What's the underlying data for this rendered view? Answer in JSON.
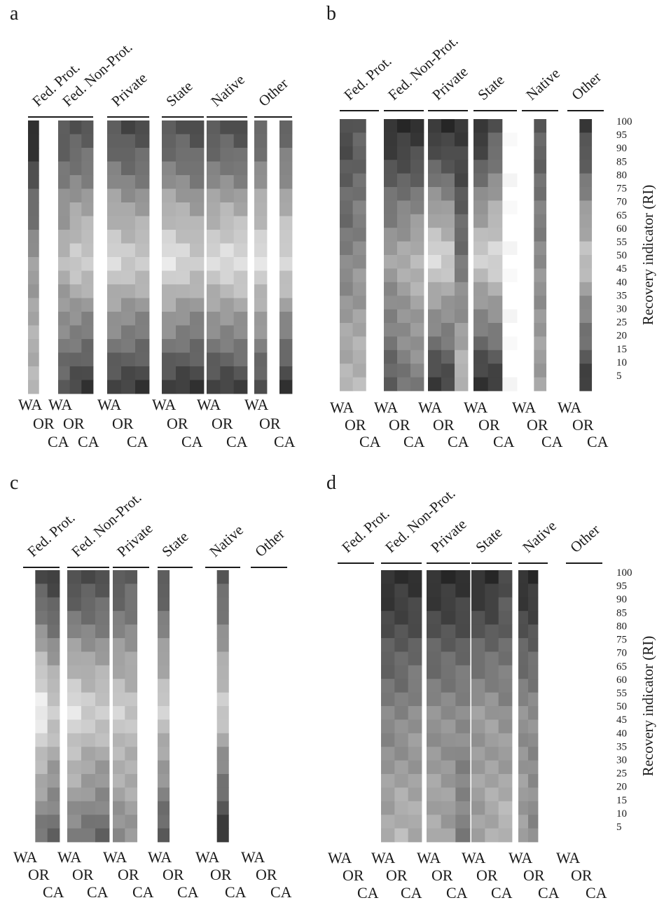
{
  "chart_data": [
    {
      "type": "heatmap",
      "panel": "a",
      "groups": [
        "Fed. Prot.",
        "Fed. Non-Prot.",
        "Private",
        "State",
        "Native",
        "Other"
      ],
      "states": [
        "WA",
        "OR",
        "CA"
      ],
      "y_ticks": [],
      "ylabel": "",
      "note": "Cell shading is greyscale intensity (0 = white, 1 = black); rows ordered top (RI 100) to bottom (RI 5).",
      "present": [
        [
          1,
          0,
          0
        ],
        [
          1,
          1,
          1
        ],
        [
          1,
          1,
          1
        ],
        [
          1,
          1,
          1
        ],
        [
          1,
          1,
          1
        ],
        [
          1,
          0,
          1
        ]
      ],
      "top": [
        [
          0.95,
          0,
          0
        ],
        [
          0.75,
          0.75,
          0.75
        ],
        [
          0.75,
          0.8,
          0.8
        ],
        [
          0.75,
          0.75,
          0.8
        ],
        [
          0.75,
          0.75,
          0.8
        ],
        [
          0.7,
          0,
          0.7
        ]
      ],
      "mid": [
        [
          0.45,
          0,
          0
        ],
        [
          0.3,
          0.2,
          0.2
        ],
        [
          0.15,
          0.2,
          0.2
        ],
        [
          0.1,
          0.15,
          0.2
        ],
        [
          0.15,
          0.12,
          0.12
        ],
        [
          0.12,
          0,
          0.15
        ]
      ],
      "bottom": [
        [
          0.3,
          0,
          0
        ],
        [
          0.7,
          0.8,
          0.85
        ],
        [
          0.8,
          0.82,
          0.85
        ],
        [
          0.82,
          0.85,
          0.85
        ],
        [
          0.8,
          0.82,
          0.8
        ],
        [
          0.75,
          0,
          0.85
        ]
      ]
    },
    {
      "type": "heatmap",
      "panel": "b",
      "groups": [
        "Fed. Prot.",
        "Fed. Non-Prot.",
        "Private",
        "State",
        "Native",
        "Other"
      ],
      "states": [
        "WA",
        "OR",
        "CA"
      ],
      "y_ticks": [
        "100",
        "95",
        "90",
        "85",
        "80",
        "75",
        "70",
        "65",
        "60",
        "55",
        "50",
        "45",
        "40",
        "35",
        "30",
        "25",
        "20",
        "15",
        "10",
        "5"
      ],
      "ylabel": "Recovery indicator (RI)",
      "present": [
        [
          1,
          1,
          0
        ],
        [
          1,
          1,
          1
        ],
        [
          1,
          1,
          1
        ],
        [
          1,
          1,
          1
        ],
        [
          0,
          1,
          0
        ],
        [
          0,
          1,
          0
        ]
      ],
      "top": [
        [
          0.8,
          0.72,
          0
        ],
        [
          0.92,
          0.92,
          0.92
        ],
        [
          0.9,
          0.92,
          0.88
        ],
        [
          0.92,
          0.75,
          0
        ],
        [
          0,
          0.72,
          0
        ],
        [
          0,
          0.85,
          0
        ]
      ],
      "mid": [
        [
          0.55,
          0.5,
          0
        ],
        [
          0.4,
          0.35,
          0.3
        ],
        [
          0.15,
          0.2,
          0.6
        ],
        [
          0.2,
          0.15,
          0
        ],
        [
          0,
          0.5,
          0
        ],
        [
          0,
          0.25,
          0
        ]
      ],
      "bottom": [
        [
          0.3,
          0.3,
          0
        ],
        [
          0.7,
          0.6,
          0.55
        ],
        [
          0.85,
          0.8,
          0.3
        ],
        [
          0.88,
          0.85,
          0
        ],
        [
          0,
          0.4,
          0
        ],
        [
          0,
          0.85,
          0
        ]
      ]
    },
    {
      "type": "heatmap",
      "panel": "c",
      "groups": [
        "Fed. Prot.",
        "Fed. Non-Prot.",
        "Private",
        "State",
        "Native",
        "Other"
      ],
      "states": [
        "WA",
        "OR",
        "CA"
      ],
      "y_ticks": [],
      "ylabel": "",
      "present": [
        [
          0,
          1,
          1
        ],
        [
          1,
          1,
          1
        ],
        [
          1,
          1,
          0
        ],
        [
          1,
          0,
          0
        ],
        [
          0,
          1,
          0
        ],
        [
          0,
          0,
          0
        ]
      ],
      "top": [
        [
          0,
          0.78,
          0.85
        ],
        [
          0.8,
          0.78,
          0.78
        ],
        [
          0.75,
          0.7,
          0
        ],
        [
          0.75,
          0,
          0
        ],
        [
          0,
          0.72,
          0
        ],
        [
          0,
          0,
          0
        ]
      ],
      "mid": [
        [
          0,
          0.05,
          0.2
        ],
        [
          0.12,
          0.2,
          0.2
        ],
        [
          0.2,
          0.25,
          0
        ],
        [
          0.2,
          0,
          0
        ],
        [
          0,
          0.2,
          0
        ],
        [
          0,
          0,
          0
        ]
      ],
      "bottom": [
        [
          0,
          0.6,
          0.65
        ],
        [
          0.55,
          0.6,
          0.65
        ],
        [
          0.5,
          0.45,
          0
        ],
        [
          0.7,
          0,
          0
        ],
        [
          0,
          0.88,
          0
        ],
        [
          0,
          0,
          0
        ]
      ]
    },
    {
      "type": "heatmap",
      "panel": "d",
      "groups": [
        "Fed. Prot.",
        "Fed. Non-Prot.",
        "Private",
        "State",
        "Native",
        "Other"
      ],
      "states": [
        "WA",
        "OR",
        "CA"
      ],
      "y_ticks": [
        "100",
        "95",
        "90",
        "85",
        "80",
        "75",
        "70",
        "65",
        "60",
        "55",
        "50",
        "45",
        "40",
        "35",
        "30",
        "25",
        "20",
        "15",
        "10",
        "5"
      ],
      "ylabel": "Recovery indicator (RI)",
      "present": [
        [
          0,
          0,
          0
        ],
        [
          1,
          1,
          1
        ],
        [
          1,
          1,
          1
        ],
        [
          1,
          1,
          1
        ],
        [
          1,
          1,
          0
        ],
        [
          0,
          0,
          0
        ]
      ],
      "top": [
        [
          0,
          0,
          0
        ],
        [
          0.92,
          0.9,
          0.92
        ],
        [
          0.92,
          0.92,
          0.92
        ],
        [
          0.92,
          0.92,
          0.8
        ],
        [
          0.92,
          0.92,
          0
        ],
        [
          0,
          0,
          0
        ]
      ],
      "mid": [
        [
          0,
          0,
          0
        ],
        [
          0.55,
          0.55,
          0.5
        ],
        [
          0.5,
          0.5,
          0.5
        ],
        [
          0.45,
          0.45,
          0.5
        ],
        [
          0.5,
          0.5,
          0
        ],
        [
          0,
          0,
          0
        ]
      ],
      "bottom": [
        [
          0,
          0,
          0
        ],
        [
          0.35,
          0.3,
          0.35
        ],
        [
          0.35,
          0.4,
          0.55
        ],
        [
          0.4,
          0.35,
          0.3
        ],
        [
          0.4,
          0.5,
          0
        ],
        [
          0,
          0,
          0
        ]
      ]
    }
  ]
}
